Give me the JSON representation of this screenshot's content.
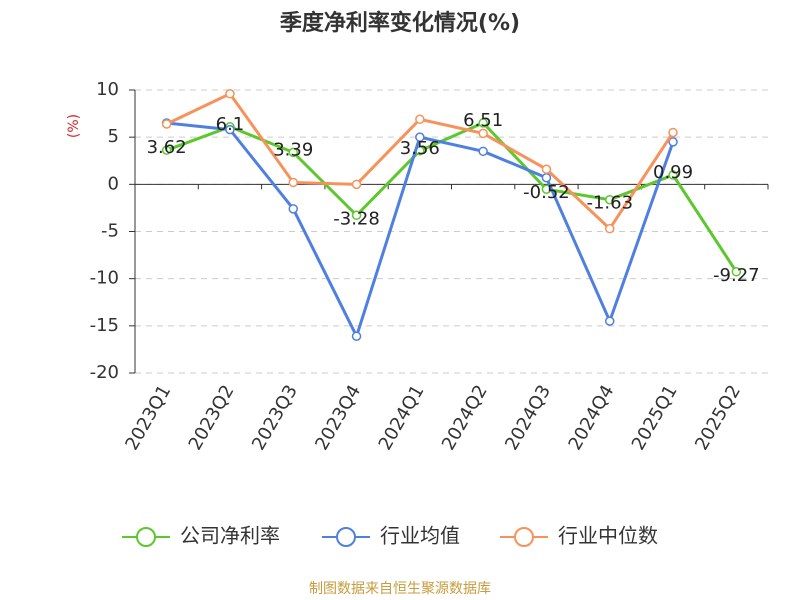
{
  "chart_data": {
    "type": "line",
    "title": "季度净利率变化情况(%)",
    "y_label": "(%)",
    "categories": [
      "2023Q1",
      "2023Q2",
      "2023Q3",
      "2023Q4",
      "2024Q1",
      "2024Q2",
      "2024Q3",
      "2024Q4",
      "2025Q1",
      "2025Q2"
    ],
    "series": [
      {
        "name": "公司净利率",
        "color": "#5cc82c",
        "values": [
          3.62,
          6.1,
          3.39,
          -3.28,
          3.56,
          6.51,
          -0.52,
          -1.63,
          0.99,
          -9.27
        ]
      },
      {
        "name": "行业均值",
        "color": "#4f7fe0",
        "values": [
          6.5,
          5.8,
          -2.6,
          -16.1,
          5.0,
          3.5,
          0.7,
          -14.5,
          4.5,
          null
        ]
      },
      {
        "name": "行业中位数",
        "color": "#f7925a",
        "values": [
          6.4,
          9.6,
          0.2,
          0.0,
          6.9,
          5.4,
          1.6,
          -4.7,
          5.5,
          null
        ]
      }
    ],
    "labeled_series": 0,
    "ylim": [
      -20,
      10
    ],
    "yticks": [
      -20,
      -15,
      -10,
      -5,
      0,
      5,
      10
    ],
    "grid": true,
    "legend": "bottom",
    "source": "制图数据来自恒生聚源数据库"
  }
}
